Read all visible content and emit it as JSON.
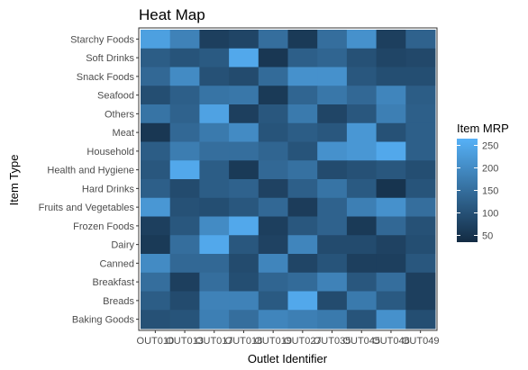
{
  "chart_data": {
    "type": "heatmap",
    "title": "Heat Map",
    "xlabel": "Outlet Identifier",
    "ylabel": "Item Type",
    "x": [
      "OUT010",
      "OUT013",
      "OUT017",
      "OUT018",
      "OUT019",
      "OUT027",
      "OUT035",
      "OUT045",
      "OUT046",
      "OUT049"
    ],
    "y": [
      "Starchy Foods",
      "Soft Drinks",
      "Snack Foods",
      "Seafood",
      "Others",
      "Meat",
      "Household",
      "Health and Hygiene",
      "Hard Drinks",
      "Fruits and Vegetables",
      "Frozen Foods",
      "Dairy",
      "Canned",
      "Breakfast",
      "Breads",
      "Baking Goods"
    ],
    "values": [
      [
        235,
        185,
        70,
        80,
        150,
        60,
        150,
        210,
        70,
        130
      ],
      [
        120,
        105,
        115,
        250,
        55,
        125,
        135,
        100,
        80,
        85
      ],
      [
        140,
        200,
        100,
        90,
        145,
        210,
        210,
        110,
        95,
        95
      ],
      [
        95,
        125,
        160,
        165,
        60,
        135,
        165,
        140,
        190,
        120
      ],
      [
        160,
        130,
        240,
        70,
        110,
        170,
        80,
        110,
        180,
        125
      ],
      [
        55,
        140,
        170,
        200,
        105,
        120,
        110,
        220,
        100,
        125
      ],
      [
        120,
        175,
        150,
        150,
        135,
        105,
        210,
        220,
        250,
        125
      ],
      [
        110,
        250,
        120,
        60,
        140,
        155,
        90,
        100,
        110,
        95
      ],
      [
        125,
        90,
        120,
        130,
        75,
        125,
        160,
        115,
        50,
        105
      ],
      [
        220,
        100,
        95,
        110,
        140,
        65,
        130,
        180,
        210,
        150
      ],
      [
        70,
        110,
        200,
        250,
        70,
        110,
        130,
        60,
        140,
        100
      ],
      [
        60,
        150,
        250,
        110,
        75,
        190,
        90,
        90,
        75,
        95
      ],
      [
        200,
        140,
        140,
        90,
        190,
        80,
        105,
        70,
        70,
        110
      ],
      [
        150,
        70,
        150,
        95,
        135,
        145,
        185,
        110,
        150,
        70
      ],
      [
        120,
        90,
        185,
        185,
        115,
        250,
        90,
        170,
        115,
        70
      ],
      [
        100,
        105,
        180,
        150,
        190,
        180,
        170,
        105,
        210,
        95
      ]
    ],
    "legend": {
      "title": "Item MRP",
      "ticks": [
        50,
        100,
        150,
        200,
        250
      ],
      "range": [
        35,
        265
      ],
      "low_color": "#132b43",
      "high_color": "#56b1f7"
    },
    "grid": false
  }
}
